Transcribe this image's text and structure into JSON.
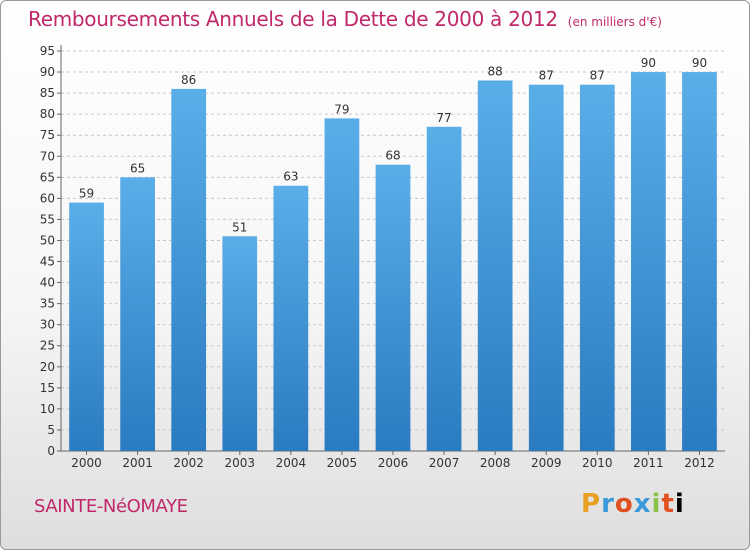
{
  "header": {
    "title": "Remboursements Annuels de la Dette de 2000 à 2012",
    "unit": "(en milliers d'€)"
  },
  "footer": {
    "commune": "SAINTE-NéOMAYE",
    "logo_text": "Proxiti"
  },
  "colors": {
    "accent": "#c0286a",
    "bar_top": "#5aaee8",
    "bar_bottom": "#2a7bc0"
  },
  "chart_data": {
    "type": "bar",
    "title": "Remboursements Annuels de la Dette de 2000 à 2012",
    "subtitle": "(en milliers d'€)",
    "xlabel": "",
    "ylabel": "",
    "categories": [
      "2000",
      "2001",
      "2002",
      "2003",
      "2004",
      "2005",
      "2006",
      "2007",
      "2008",
      "2009",
      "2010",
      "2011",
      "2012"
    ],
    "values": [
      59,
      65,
      86,
      51,
      63,
      79,
      68,
      77,
      88,
      87,
      87,
      90,
      90
    ],
    "ylim": [
      0,
      95
    ],
    "ytick_step": 5,
    "grid": "horizontal-dashed",
    "data_labels": true
  }
}
